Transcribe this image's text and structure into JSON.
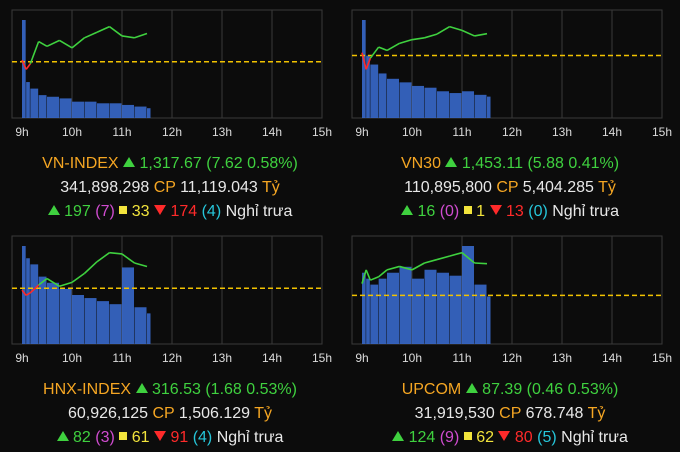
{
  "time_labels": [
    "9h",
    "10h",
    "11h",
    "12h",
    "13h",
    "14h",
    "15h"
  ],
  "colors": {
    "up": "#3fd13f",
    "down": "#ff2a2a",
    "ref": "#f2c200",
    "volume": "#3b6fd6",
    "grid": "#3a3a3a"
  },
  "panels": [
    {
      "index": "VN-INDEX",
      "value": "1,317.67",
      "change": "(7.62 0.58%)",
      "volume": "341,898,298",
      "cp_label": "CP",
      "amount": "11,119.043",
      "unit": "Tỷ",
      "up": "197",
      "ceiling": "(7)",
      "flat": "33",
      "down": "174",
      "floor": "(4)",
      "status": "Nghỉ trưa"
    },
    {
      "index": "VN30",
      "value": "1,453.11",
      "change": "(5.88 0.41%)",
      "volume": "110,895,800",
      "cp_label": "CP",
      "amount": "5,404.285",
      "unit": "Tỷ",
      "up": "16",
      "ceiling": "(0)",
      "flat": "1",
      "down": "13",
      "floor": "(0)",
      "status": "Nghỉ trưa"
    },
    {
      "index": "HNX-INDEX",
      "value": "316.53",
      "change": "(1.68 0.53%)",
      "volume": "60,926,125",
      "cp_label": "CP",
      "amount": "1,506.129",
      "unit": "Tỷ",
      "up": "82",
      "ceiling": "(3)",
      "flat": "61",
      "down": "91",
      "floor": "(4)",
      "status": "Nghỉ trưa"
    },
    {
      "index": "UPCOM",
      "value": "87.39",
      "change": "(0.46 0.53%)",
      "volume": "31,919,530",
      "cp_label": "CP",
      "amount": "678.748",
      "unit": "Tỷ",
      "up": "124",
      "ceiling": "(9)",
      "flat": "62",
      "down": "80",
      "floor": "(5)",
      "status": "Nghỉ trưa"
    }
  ],
  "chart_data": [
    {
      "type": "line",
      "title": "VN-INDEX",
      "reference": 1310.05,
      "x": [
        "9:00",
        "9:05",
        "9:10",
        "9:20",
        "9:30",
        "9:45",
        "10:00",
        "10:15",
        "10:30",
        "10:45",
        "11:00",
        "11:15",
        "11:30"
      ],
      "price": [
        1310.5,
        1308.0,
        1309.5,
        1315.5,
        1314.2,
        1315.8,
        1313.8,
        1316.5,
        1318.0,
        1319.5,
        1317.0,
        1316.5,
        1317.67
      ],
      "volume": [
        60,
        22,
        18,
        14,
        13,
        12,
        10,
        10,
        9,
        9,
        8,
        7,
        6
      ]
    },
    {
      "type": "line",
      "title": "VN30",
      "reference": 1447.23,
      "x": [
        "9:00",
        "9:05",
        "9:10",
        "9:20",
        "9:30",
        "9:45",
        "10:00",
        "10:15",
        "10:30",
        "10:45",
        "11:00",
        "11:15",
        "11:30"
      ],
      "price": [
        1448.0,
        1443.5,
        1446.5,
        1449.5,
        1448.6,
        1450.5,
        1451.5,
        1452.0,
        1453.0,
        1455.0,
        1454.0,
        1452.5,
        1453.11
      ],
      "volume": [
        55,
        35,
        30,
        25,
        22,
        20,
        18,
        17,
        15,
        14,
        15,
        13,
        12
      ]
    },
    {
      "type": "line",
      "title": "HNX-INDEX",
      "reference": 314.85,
      "x": [
        "9:00",
        "9:05",
        "9:10",
        "9:20",
        "9:30",
        "9:45",
        "10:00",
        "10:15",
        "10:30",
        "10:45",
        "11:00",
        "11:15",
        "11:30"
      ],
      "price": [
        314.7,
        314.3,
        314.5,
        315.1,
        315.6,
        315.0,
        315.3,
        316.0,
        316.9,
        317.6,
        317.5,
        316.8,
        316.53
      ],
      "volume": [
        32,
        28,
        26,
        22,
        20,
        18,
        16,
        15,
        14,
        13,
        25,
        12,
        10
      ]
    },
    {
      "type": "line",
      "title": "UPCOM",
      "reference": 86.93,
      "x": [
        "9:00",
        "9:05",
        "9:10",
        "9:20",
        "9:30",
        "9:45",
        "10:00",
        "10:15",
        "10:30",
        "10:45",
        "11:00",
        "11:15",
        "11:30"
      ],
      "price": [
        87.1,
        87.3,
        87.15,
        87.2,
        87.3,
        87.35,
        87.3,
        87.4,
        87.45,
        87.5,
        87.55,
        87.4,
        87.39
      ],
      "volume": [
        24,
        22,
        20,
        22,
        24,
        26,
        22,
        25,
        24,
        23,
        33,
        20,
        16
      ]
    }
  ]
}
